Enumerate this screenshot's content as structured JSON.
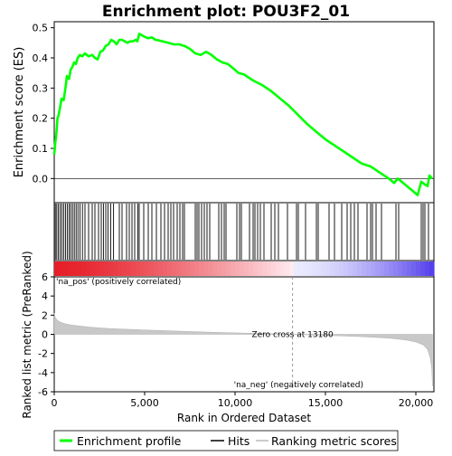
{
  "chart_data": {
    "type": "line",
    "title": "Enrichment plot: POU3F2_01",
    "top_panel": {
      "ylabel": "Enrichment score (ES)",
      "ylim": [
        -0.08,
        0.52
      ],
      "yticks": [
        "0.0",
        "0.1",
        "0.2",
        "0.3",
        "0.4",
        "0.5"
      ],
      "ytick_values": [
        0.0,
        0.1,
        0.2,
        0.3,
        0.4,
        0.5
      ],
      "xlim": [
        0,
        21000
      ],
      "line_color": "#00ff00",
      "es_curve": [
        [
          0,
          0.08
        ],
        [
          60,
          0.12
        ],
        [
          120,
          0.15
        ],
        [
          180,
          0.2
        ],
        [
          240,
          0.21
        ],
        [
          320,
          0.235
        ],
        [
          400,
          0.265
        ],
        [
          520,
          0.26
        ],
        [
          620,
          0.3
        ],
        [
          700,
          0.34
        ],
        [
          820,
          0.33
        ],
        [
          900,
          0.36
        ],
        [
          1000,
          0.37
        ],
        [
          1100,
          0.385
        ],
        [
          1200,
          0.38
        ],
        [
          1300,
          0.4
        ],
        [
          1420,
          0.41
        ],
        [
          1550,
          0.405
        ],
        [
          1700,
          0.415
        ],
        [
          1900,
          0.405
        ],
        [
          2100,
          0.41
        ],
        [
          2250,
          0.4
        ],
        [
          2400,
          0.395
        ],
        [
          2550,
          0.42
        ],
        [
          2700,
          0.425
        ],
        [
          2850,
          0.44
        ],
        [
          3000,
          0.445
        ],
        [
          3150,
          0.46
        ],
        [
          3300,
          0.455
        ],
        [
          3450,
          0.445
        ],
        [
          3600,
          0.46
        ],
        [
          3750,
          0.46
        ],
        [
          3900,
          0.455
        ],
        [
          4050,
          0.45
        ],
        [
          4200,
          0.455
        ],
        [
          4350,
          0.455
        ],
        [
          4500,
          0.46
        ],
        [
          4600,
          0.455
        ],
        [
          4700,
          0.48
        ],
        [
          5000,
          0.47
        ],
        [
          5200,
          0.465
        ],
        [
          5400,
          0.468
        ],
        [
          5600,
          0.46
        ],
        [
          5800,
          0.458
        ],
        [
          6000,
          0.455
        ],
        [
          6300,
          0.45
        ],
        [
          6600,
          0.445
        ],
        [
          6900,
          0.445
        ],
        [
          7200,
          0.44
        ],
        [
          7500,
          0.43
        ],
        [
          7800,
          0.415
        ],
        [
          8100,
          0.41
        ],
        [
          8400,
          0.42
        ],
        [
          8700,
          0.41
        ],
        [
          9000,
          0.395
        ],
        [
          9300,
          0.385
        ],
        [
          9600,
          0.38
        ],
        [
          10000,
          0.36
        ],
        [
          10200,
          0.35
        ],
        [
          10500,
          0.345
        ],
        [
          11000,
          0.325
        ],
        [
          11500,
          0.31
        ],
        [
          12000,
          0.29
        ],
        [
          12500,
          0.265
        ],
        [
          13000,
          0.24
        ],
        [
          13500,
          0.21
        ],
        [
          14000,
          0.18
        ],
        [
          14500,
          0.155
        ],
        [
          15000,
          0.13
        ],
        [
          15500,
          0.11
        ],
        [
          16000,
          0.09
        ],
        [
          16500,
          0.07
        ],
        [
          17000,
          0.05
        ],
        [
          17500,
          0.04
        ],
        [
          18000,
          0.02
        ],
        [
          18500,
          0.0
        ],
        [
          18800,
          -0.015
        ],
        [
          19000,
          0.0
        ],
        [
          19300,
          -0.015
        ],
        [
          19600,
          -0.03
        ],
        [
          19900,
          -0.045
        ],
        [
          20100,
          -0.055
        ],
        [
          20300,
          -0.01
        ],
        [
          20500,
          -0.02
        ],
        [
          20650,
          -0.025
        ],
        [
          20750,
          0.01
        ],
        [
          20900,
          0.0
        ]
      ]
    },
    "hits_panel": {
      "hit_color": "#000000",
      "hits": [
        60,
        140,
        230,
        330,
        420,
        520,
        620,
        720,
        820,
        910,
        1010,
        1110,
        1210,
        1310,
        1420,
        1560,
        1700,
        1900,
        2100,
        2250,
        2450,
        2600,
        2720,
        2850,
        2970,
        3120,
        3280,
        3600,
        3750,
        4000,
        4150,
        4300,
        4450,
        4620,
        4700,
        4950,
        5200,
        5400,
        5650,
        5900,
        6100,
        6300,
        6450,
        6600,
        6800,
        6950,
        7100,
        7200,
        7800,
        7900,
        8000,
        8150,
        8300,
        8450,
        8600,
        9100,
        9250,
        9400,
        9500,
        10100,
        10250,
        10350,
        10800,
        11000,
        11100,
        11250,
        11400,
        11600,
        12000,
        12200,
        12400,
        12900,
        13400,
        13500,
        13900,
        14500,
        14600,
        15200,
        15500,
        15900,
        16200,
        16400,
        16600,
        16800,
        17300,
        17500,
        17600,
        17800,
        18100,
        18900,
        19050,
        20300,
        20400,
        20500,
        20700
      ]
    },
    "bottom_panel": {
      "xlabel": "Rank in Ordered Dataset",
      "ylabel": "Ranked list metric (PreRanked)",
      "ylim": [
        -6,
        6
      ],
      "yticks": [
        "-6",
        "-4",
        "-2",
        "0",
        "2",
        "4",
        "6"
      ],
      "ytick_values": [
        -6,
        -4,
        -2,
        0,
        2,
        4,
        6
      ],
      "xticks": [
        "0",
        "5,000",
        "10,000",
        "15,000",
        "20,000"
      ],
      "xtick_values": [
        0,
        5000,
        10000,
        15000,
        20000
      ],
      "xlim": [
        0,
        21000
      ],
      "zero_cross": 13180,
      "zero_cross_label": "Zero cross at 13180",
      "pos_label": "'na_pos' (positively correlated)",
      "neg_label": "'na_neg' (negatively correlated)",
      "pos_color": "#cc0000",
      "neg_color": "#0000cc",
      "metric_curve": [
        [
          0,
          2.2
        ],
        [
          50,
          1.8
        ],
        [
          150,
          1.5
        ],
        [
          300,
          1.3
        ],
        [
          600,
          1.1
        ],
        [
          1000,
          0.95
        ],
        [
          2000,
          0.75
        ],
        [
          3000,
          0.6
        ],
        [
          5000,
          0.45
        ],
        [
          7000,
          0.32
        ],
        [
          9000,
          0.2
        ],
        [
          11000,
          0.1
        ],
        [
          13180,
          0.0
        ],
        [
          15000,
          -0.1
        ],
        [
          17000,
          -0.25
        ],
        [
          18500,
          -0.4
        ],
        [
          19500,
          -0.6
        ],
        [
          20000,
          -0.8
        ],
        [
          20400,
          -1.1
        ],
        [
          20650,
          -1.6
        ],
        [
          20800,
          -2.5
        ],
        [
          20880,
          -3.5
        ],
        [
          20920,
          -5.4
        ]
      ]
    },
    "legend": {
      "placement": "bottom",
      "items": [
        {
          "label": "Enrichment profile",
          "color": "#00ff00",
          "style": "thick-line"
        },
        {
          "label": "Hits",
          "color": "#000000",
          "style": "line"
        },
        {
          "label": "Ranking metric scores",
          "color": "#bbbbbb",
          "style": "line"
        }
      ]
    }
  }
}
